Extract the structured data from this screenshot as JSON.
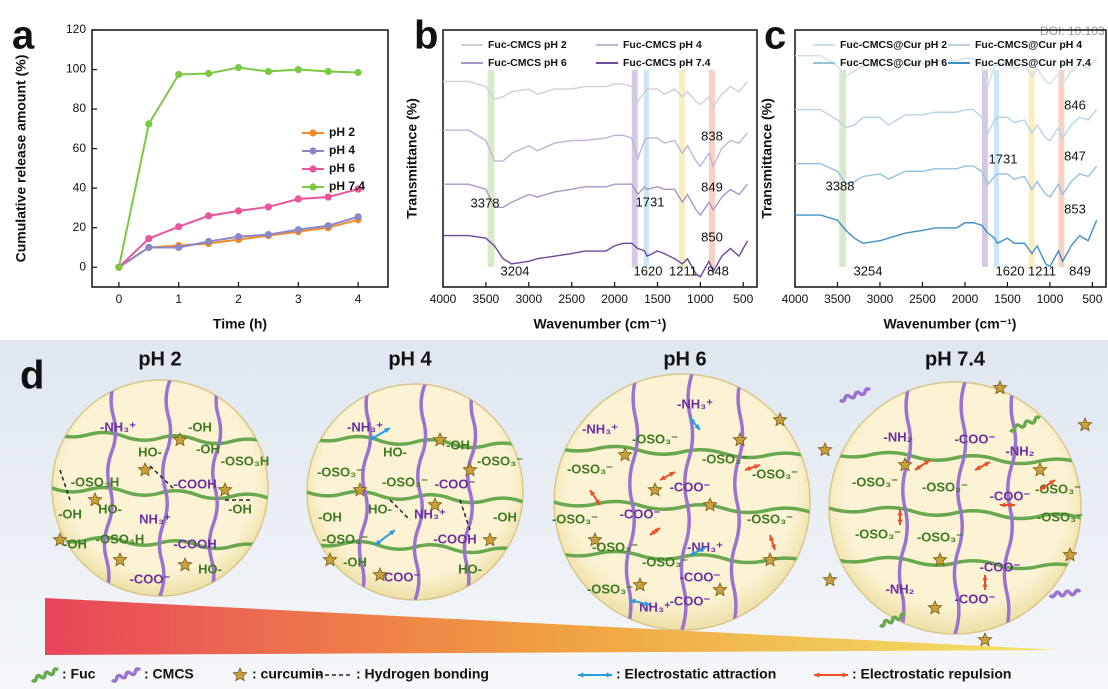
{
  "panel_labels": [
    "a",
    "b",
    "c",
    "d"
  ],
  "doi_text": "DOI: 10.103",
  "chart_data": [
    {
      "type": "line",
      "xlabel": "Time (h)",
      "ylabel": "Cumulative release amount (%)",
      "x": [
        0,
        0.5,
        1,
        1.5,
        2,
        2.5,
        3,
        3.5,
        4
      ],
      "series": [
        {
          "name": "pH 2",
          "color": "#f28c28",
          "values": [
            0,
            10,
            11,
            12,
            14,
            16,
            18,
            20,
            24
          ]
        },
        {
          "name": "pH 4",
          "color": "#8c87c8",
          "values": [
            0,
            10,
            10,
            13,
            15.5,
            16.5,
            19,
            21,
            25.5
          ]
        },
        {
          "name": "pH 6",
          "color": "#e8559a",
          "values": [
            0,
            14.5,
            20.5,
            26,
            28.5,
            30.5,
            34.5,
            35.5,
            39.5
          ]
        },
        {
          "name": "pH 7.4",
          "color": "#7ac943",
          "values": [
            0,
            72.5,
            97.5,
            98,
            101,
            99,
            100,
            99,
            98.5
          ]
        }
      ],
      "xlim": [
        -0.45,
        4.5
      ],
      "ylim": [
        -10,
        120
      ],
      "xticks": [
        0,
        1,
        2,
        3,
        4
      ],
      "yticks": [
        0,
        20,
        40,
        60,
        80,
        100,
        120
      ],
      "markers": true,
      "legend": "right"
    },
    {
      "type": "line",
      "xlabel": "Wavenumber (cm⁻¹)",
      "ylabel": "Transmittance (%)",
      "x": [
        4000,
        3700,
        3500,
        3400,
        3300,
        3200,
        3000,
        2900,
        2700,
        2500,
        2350,
        2100,
        2000,
        1900,
        1800,
        1731,
        1650,
        1620,
        1500,
        1420,
        1300,
        1211,
        1150,
        1050,
        1000,
        900,
        850,
        750,
        650,
        550,
        450
      ],
      "series": [
        {
          "name": "Fuc-CMCS pH 2",
          "color": "#cfcfd6",
          "values": [
            80,
            80,
            78,
            73,
            74,
            76,
            77,
            75,
            77,
            77,
            78,
            78,
            79,
            79,
            78,
            72,
            76,
            77,
            77,
            75,
            77,
            74,
            76,
            72,
            71,
            74,
            70,
            75,
            78,
            76,
            80
          ]
        },
        {
          "name": "Fuc-CMCS pH 4",
          "color": "#c4b3d8",
          "values": [
            61,
            61,
            57,
            49,
            49,
            52,
            55,
            53,
            56,
            57,
            57,
            58,
            59,
            59,
            58,
            50,
            57,
            58,
            58,
            56,
            57,
            52,
            55,
            49,
            47,
            52,
            47,
            54,
            57,
            56,
            60
          ]
        },
        {
          "name": "Fuc-CMCS pH 6",
          "color": "#ab96c9",
          "values": [
            40,
            40,
            38,
            31,
            31,
            33,
            36,
            35,
            37,
            38,
            39,
            39,
            40,
            40,
            40,
            36,
            39,
            38,
            39,
            38,
            38,
            33,
            36,
            30,
            28,
            33,
            30,
            35,
            38,
            36,
            40
          ]
        },
        {
          "name": "Fuc-CMCS pH 7.4",
          "color": "#6d4a9e",
          "values": [
            20,
            20,
            19,
            16,
            11,
            9,
            10,
            11,
            12,
            13,
            14,
            14,
            16,
            17,
            17,
            15,
            14,
            12,
            14,
            13,
            11,
            9,
            11,
            5,
            4,
            10,
            6,
            12,
            15,
            12,
            18
          ]
        }
      ],
      "xlim": [
        4000,
        340
      ],
      "ylim": [
        0,
        100
      ],
      "xticks": [
        4000,
        3500,
        3000,
        2500,
        2000,
        1500,
        1000,
        500
      ],
      "bands": [
        {
          "range": [
            3480,
            3400
          ],
          "color": "#bfdca8"
        },
        {
          "range": [
            1800,
            1730
          ],
          "color": "#b9a6d6"
        },
        {
          "range": [
            1660,
            1600
          ],
          "color": "#a9d3f0"
        },
        {
          "range": [
            1250,
            1180
          ],
          "color": "#f8df9a"
        },
        {
          "range": [
            900,
            830
          ],
          "color": "#f5b39a"
        }
      ],
      "annotations": [
        3378,
        1731,
        838,
        849,
        850,
        3204,
        1620,
        1211,
        848
      ],
      "legend": "top"
    },
    {
      "type": "line",
      "xlabel": "Wavenumber (cm⁻¹)",
      "ylabel": "Transmittance (%)",
      "x": [
        4000,
        3700,
        3500,
        3400,
        3300,
        3200,
        3000,
        2900,
        2700,
        2500,
        2350,
        2100,
        2000,
        1900,
        1800,
        1731,
        1650,
        1620,
        1500,
        1420,
        1300,
        1211,
        1150,
        1050,
        1000,
        900,
        850,
        750,
        650,
        550,
        450
      ],
      "series": [
        {
          "name": "Fuc-CMCS@Cur pH 2",
          "color": "#cfe0ea",
          "values": [
            90,
            90,
            86,
            82,
            84,
            86,
            86,
            84,
            87,
            87,
            88,
            88,
            89,
            89,
            86,
            78,
            86,
            87,
            87,
            85,
            86,
            82,
            85,
            80,
            79,
            83,
            79,
            84,
            87,
            85,
            89
          ]
        },
        {
          "name": "Fuc-CMCS@Cur pH 4",
          "color": "#b5d3e6",
          "values": [
            69,
            69,
            65,
            62,
            63,
            66,
            66,
            63,
            67,
            67,
            68,
            68,
            69,
            69,
            66,
            60,
            65,
            66,
            66,
            64,
            65,
            60,
            63,
            58,
            57,
            62,
            58,
            63,
            66,
            65,
            69
          ]
        },
        {
          "name": "Fuc-CMCS@Cur pH 6",
          "color": "#92c2df",
          "values": [
            48,
            48,
            45,
            40,
            41,
            43,
            44,
            42,
            45,
            45,
            46,
            46,
            47,
            47,
            45,
            40,
            43,
            44,
            44,
            42,
            43,
            38,
            41,
            36,
            35,
            40,
            36,
            41,
            44,
            43,
            47
          ]
        },
        {
          "name": "Fuc-CMCS@Cur pH 7.4",
          "color": "#3f8fc7",
          "values": [
            28,
            28,
            26,
            22,
            19,
            17,
            18,
            19,
            21,
            22,
            23,
            23,
            25,
            25,
            24,
            21,
            19,
            17,
            19,
            17,
            17,
            13,
            16,
            9,
            8,
            14,
            10,
            16,
            20,
            18,
            26
          ]
        }
      ],
      "xlim": [
        4000,
        340
      ],
      "ylim": [
        0,
        100
      ],
      "xticks": [
        4000,
        3500,
        3000,
        2500,
        2000,
        1500,
        1000,
        500
      ],
      "bands": [
        {
          "range": [
            3480,
            3400
          ],
          "color": "#bfdca8"
        },
        {
          "range": [
            1800,
            1730
          ],
          "color": "#b9a6d6"
        },
        {
          "range": [
            1660,
            1600
          ],
          "color": "#a9d3f0"
        },
        {
          "range": [
            1250,
            1180
          ],
          "color": "#f8df9a"
        },
        {
          "range": [
            900,
            830
          ],
          "color": "#f5b39a"
        }
      ],
      "annotations": [
        3388,
        1731,
        846,
        847,
        853,
        3254,
        1620,
        1211,
        849
      ],
      "legend": "top"
    }
  ],
  "diagram": {
    "circles": [
      {
        "title": "pH 2",
        "labels": [
          "-NH₃⁺",
          "-OH",
          "HO-",
          "-OH",
          "-OSO₃H",
          "-COOH",
          "-OSO₃H",
          "-OH",
          "HO-",
          "-OH",
          "NH₃⁺",
          "-OSO₃H",
          "-COOH",
          "-OH",
          "HO-",
          "-COO⁻"
        ]
      },
      {
        "title": "pH 4",
        "labels": [
          "-NH₃⁺",
          "HO-",
          "-OH",
          "-OSO₃⁻",
          "-OSO₃⁻",
          "-COO⁻",
          "-OSO₃⁻",
          "-OH",
          "HO-",
          "NH₃⁺",
          "-OSO₃⁻",
          "-COOH",
          "-OH",
          "-OH",
          "HO-",
          "-COO⁻"
        ]
      },
      {
        "title": "pH 6",
        "labels": [
          "-NH₃⁺",
          "-OSO₃⁻",
          "-NH₃⁺",
          "-OSO₃⁻",
          "-COO⁻",
          "-OSO₃⁻",
          "-OSO₃⁻",
          "-OSO₃⁻",
          "-COO⁻",
          "-OSO₃⁻",
          "-OSO₃⁻",
          "-NH₃⁺",
          "-OSO₃⁻",
          "-OSO₃⁻",
          "-COO⁻",
          "-COO⁻",
          "NH₃⁺"
        ]
      },
      {
        "title": "pH 7.4",
        "labels": [
          "-NH₂",
          "-COO⁻",
          "-NH₂",
          "-OSO₃⁻",
          "-OSO₃⁻",
          "-COO⁻",
          "-OSO₃⁻",
          "-OSO₃⁻",
          "-OSO₃⁻",
          "-OSO₃⁻",
          "-NH₂",
          "-COO⁻",
          "-COO⁻"
        ]
      }
    ],
    "legend": [
      ": Fuc",
      ": CMCS",
      ": curcumin",
      ": Hydrogen bonding",
      ": Electrostatic attraction",
      ": Electrostatic repulsion"
    ]
  }
}
